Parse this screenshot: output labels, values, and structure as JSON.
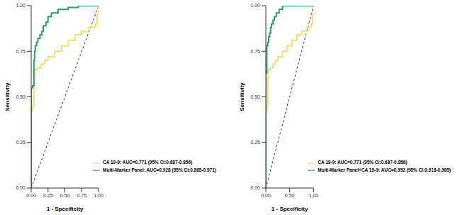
{
  "chart_data": [
    {
      "type": "line",
      "x_label": "1 - Specificity",
      "y_label": "Sensitivity",
      "xlim": [
        0,
        1
      ],
      "ylim": [
        0,
        1
      ],
      "xticks": [
        {
          "value": 0,
          "label": "0.00"
        },
        {
          "value": 0.25,
          "label": "0.25"
        },
        {
          "value": 0.5,
          "label": "0.50"
        },
        {
          "value": 0.75,
          "label": "0.75"
        },
        {
          "value": 1,
          "label": "1.00"
        }
      ],
      "yticks": [
        {
          "value": 0,
          "label": "0.00"
        },
        {
          "value": 0.25,
          "label": "0.25"
        },
        {
          "value": 0.5,
          "label": "0.50"
        },
        {
          "value": 0.75,
          "label": "0.75"
        },
        {
          "value": 1,
          "label": "1.00"
        }
      ],
      "legend": "bottom right",
      "grid": false,
      "series": [
        {
          "name": "Multi-Marker Panel: AUC=0.928 (95% CI:0.885-0.971)",
          "color": "#23a072",
          "x": [
            0,
            0,
            0.02,
            0.02,
            0.04,
            0.04,
            0.05,
            0.05,
            0.06,
            0.06,
            0.08,
            0.08,
            0.1,
            0.1,
            0.13,
            0.13,
            0.16,
            0.16,
            0.18,
            0.18,
            0.22,
            0.22,
            0.25,
            0.25,
            0.3,
            0.3,
            0.4,
            0.4,
            0.55,
            0.55,
            0.7,
            0.7,
            1
          ],
          "values": [
            0,
            0.55,
            0.55,
            0.56,
            0.56,
            0.7,
            0.7,
            0.75,
            0.75,
            0.78,
            0.78,
            0.8,
            0.8,
            0.82,
            0.82,
            0.84,
            0.84,
            0.86,
            0.86,
            0.89,
            0.89,
            0.91,
            0.91,
            0.94,
            0.94,
            0.96,
            0.96,
            0.98,
            0.98,
            0.99,
            0.99,
            1,
            1
          ]
        },
        {
          "name": "CA 19-9: AUC=0.771 (95% CI:0.687-0.856)",
          "color": "#f2e06a",
          "x": [
            0,
            0,
            0.02,
            0.02,
            0.04,
            0.04,
            0.05,
            0.05,
            0.1,
            0.1,
            0.15,
            0.15,
            0.2,
            0.2,
            0.25,
            0.25,
            0.35,
            0.35,
            0.45,
            0.45,
            0.55,
            0.55,
            0.65,
            0.65,
            0.75,
            0.75,
            0.85,
            0.85,
            0.95,
            0.95,
            0.98,
            0.98,
            1,
            1
          ],
          "values": [
            0,
            0.42,
            0.42,
            0.45,
            0.45,
            0.6,
            0.6,
            0.65,
            0.65,
            0.66,
            0.66,
            0.68,
            0.68,
            0.7,
            0.7,
            0.72,
            0.72,
            0.75,
            0.75,
            0.78,
            0.78,
            0.81,
            0.81,
            0.84,
            0.84,
            0.86,
            0.86,
            0.88,
            0.88,
            0.9,
            0.9,
            0.95,
            0.95,
            1
          ]
        }
      ]
    },
    {
      "type": "line",
      "x_label": "1 - Specificity",
      "y_label": "Sensitivity",
      "xlim": [
        0,
        1
      ],
      "ylim": [
        0,
        1
      ],
      "xticks": [
        {
          "value": 0,
          "label": "0.00"
        },
        {
          "value": 0.25,
          "label": "0.25"
        },
        {
          "value": 0.5,
          "label": "0.50"
        },
        {
          "value": 0.75,
          "label": "0.75"
        },
        {
          "value": 1,
          "label": "1.00"
        }
      ],
      "yticks": [
        {
          "value": 0,
          "label": "0.00"
        },
        {
          "value": 0.25,
          "label": "0.25"
        },
        {
          "value": 0.5,
          "label": "0.50"
        },
        {
          "value": 0.75,
          "label": "0.75"
        },
        {
          "value": 1,
          "label": "1.00"
        }
      ],
      "legend": "bottom right",
      "grid": false,
      "series": [
        {
          "name": "Multi-Marker Panel+CA 19-9: AUC=0.952 (95% CI:0.918-0.985)",
          "color": "#23a072",
          "x": [
            0,
            0,
            0.02,
            0.02,
            0.04,
            0.04,
            0.06,
            0.06,
            0.08,
            0.08,
            0.1,
            0.1,
            0.12,
            0.12,
            0.15,
            0.15,
            0.18,
            0.18,
            0.22,
            0.22,
            0.28,
            0.28,
            0.35,
            0.35,
            1
          ],
          "values": [
            0,
            0.63,
            0.63,
            0.78,
            0.78,
            0.8,
            0.8,
            0.83,
            0.83,
            0.85,
            0.85,
            0.88,
            0.88,
            0.9,
            0.9,
            0.92,
            0.92,
            0.94,
            0.94,
            0.96,
            0.96,
            0.98,
            0.98,
            1,
            1
          ]
        },
        {
          "name": "CA 19-9: AUC=0.771 (95% CI:0.687-0.856)",
          "color": "#f2e06a",
          "x": [
            0,
            0,
            0.02,
            0.02,
            0.04,
            0.04,
            0.05,
            0.05,
            0.1,
            0.1,
            0.15,
            0.15,
            0.2,
            0.2,
            0.25,
            0.25,
            0.35,
            0.35,
            0.45,
            0.45,
            0.55,
            0.55,
            0.65,
            0.65,
            0.75,
            0.75,
            0.85,
            0.85,
            0.95,
            0.95,
            0.98,
            0.98,
            1,
            1
          ],
          "values": [
            0,
            0.42,
            0.42,
            0.45,
            0.45,
            0.6,
            0.6,
            0.65,
            0.65,
            0.66,
            0.66,
            0.68,
            0.68,
            0.7,
            0.7,
            0.72,
            0.72,
            0.75,
            0.75,
            0.78,
            0.78,
            0.81,
            0.81,
            0.84,
            0.84,
            0.86,
            0.86,
            0.88,
            0.88,
            0.9,
            0.9,
            0.95,
            0.95,
            1
          ]
        }
      ]
    }
  ]
}
